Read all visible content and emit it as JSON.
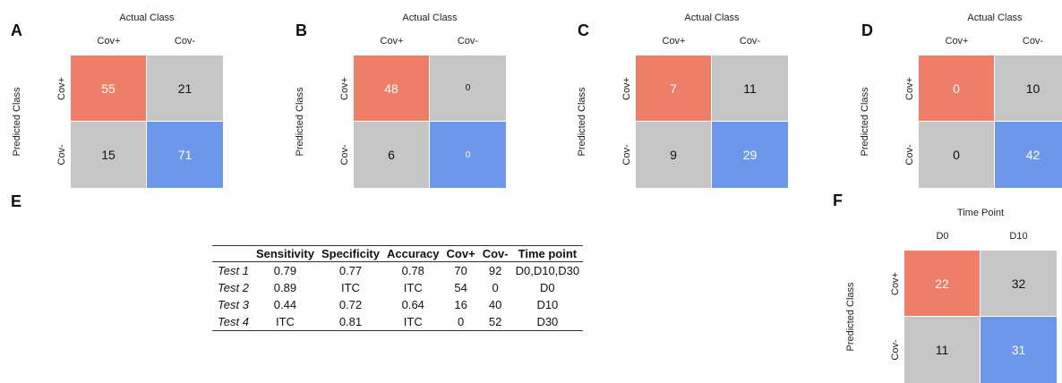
{
  "panels": {
    "A": "A",
    "B": "B",
    "C": "C",
    "D": "D",
    "E": "E",
    "F": "F"
  },
  "chart_data": [
    {
      "type": "heatmap",
      "panel": "A",
      "title": "Actual Class",
      "ylabel": "Predicted Class",
      "columns": [
        "Cov+",
        "Cov-"
      ],
      "rows": [
        "Cov+",
        "Cov-"
      ],
      "values": [
        [
          55,
          21
        ],
        [
          15,
          71
        ]
      ]
    },
    {
      "type": "heatmap",
      "panel": "B",
      "title": "Actual Class",
      "ylabel": "Predicted Class",
      "columns": [
        "Cov+",
        "Cov-"
      ],
      "rows": [
        "Cov+",
        "Cov-"
      ],
      "values": [
        [
          48,
          0
        ],
        [
          6,
          0
        ]
      ]
    },
    {
      "type": "heatmap",
      "panel": "C",
      "title": "Actual Class",
      "ylabel": "Predicted Class",
      "columns": [
        "Cov+",
        "Cov-"
      ],
      "rows": [
        "Cov+",
        "Cov-"
      ],
      "values": [
        [
          7,
          11
        ],
        [
          9,
          29
        ]
      ]
    },
    {
      "type": "heatmap",
      "panel": "D",
      "title": "Actual Class",
      "ylabel": "Predicted Class",
      "columns": [
        "Cov+",
        "Cov-"
      ],
      "rows": [
        "Cov+",
        "Cov-"
      ],
      "values": [
        [
          0,
          10
        ],
        [
          0,
          42
        ]
      ]
    },
    {
      "type": "table",
      "panel": "E",
      "headers": [
        "",
        "Sensitivity",
        "Specificity",
        "Accuracy",
        "Cov+",
        "Cov-",
        "Time point"
      ],
      "rows": [
        [
          "Test 1",
          "0.79",
          "0.77",
          "0.78",
          "70",
          "92",
          "D0,D10,D30"
        ],
        [
          "Test 2",
          "0.89",
          "ITC",
          "ITC",
          "54",
          "0",
          "D0"
        ],
        [
          "Test 3",
          "0.44",
          "0.72",
          "0.64",
          "16",
          "40",
          "D10"
        ],
        [
          "Test 4",
          "ITC",
          "0.81",
          "ITC",
          "0",
          "52",
          "D30"
        ]
      ]
    },
    {
      "type": "heatmap",
      "panel": "F",
      "title": "Time Point",
      "ylabel": "Predicted Class",
      "columns": [
        "D0",
        "D10"
      ],
      "rows": [
        "Cov+",
        "Cov-"
      ],
      "values": [
        [
          22,
          32
        ],
        [
          11,
          31
        ]
      ]
    }
  ]
}
